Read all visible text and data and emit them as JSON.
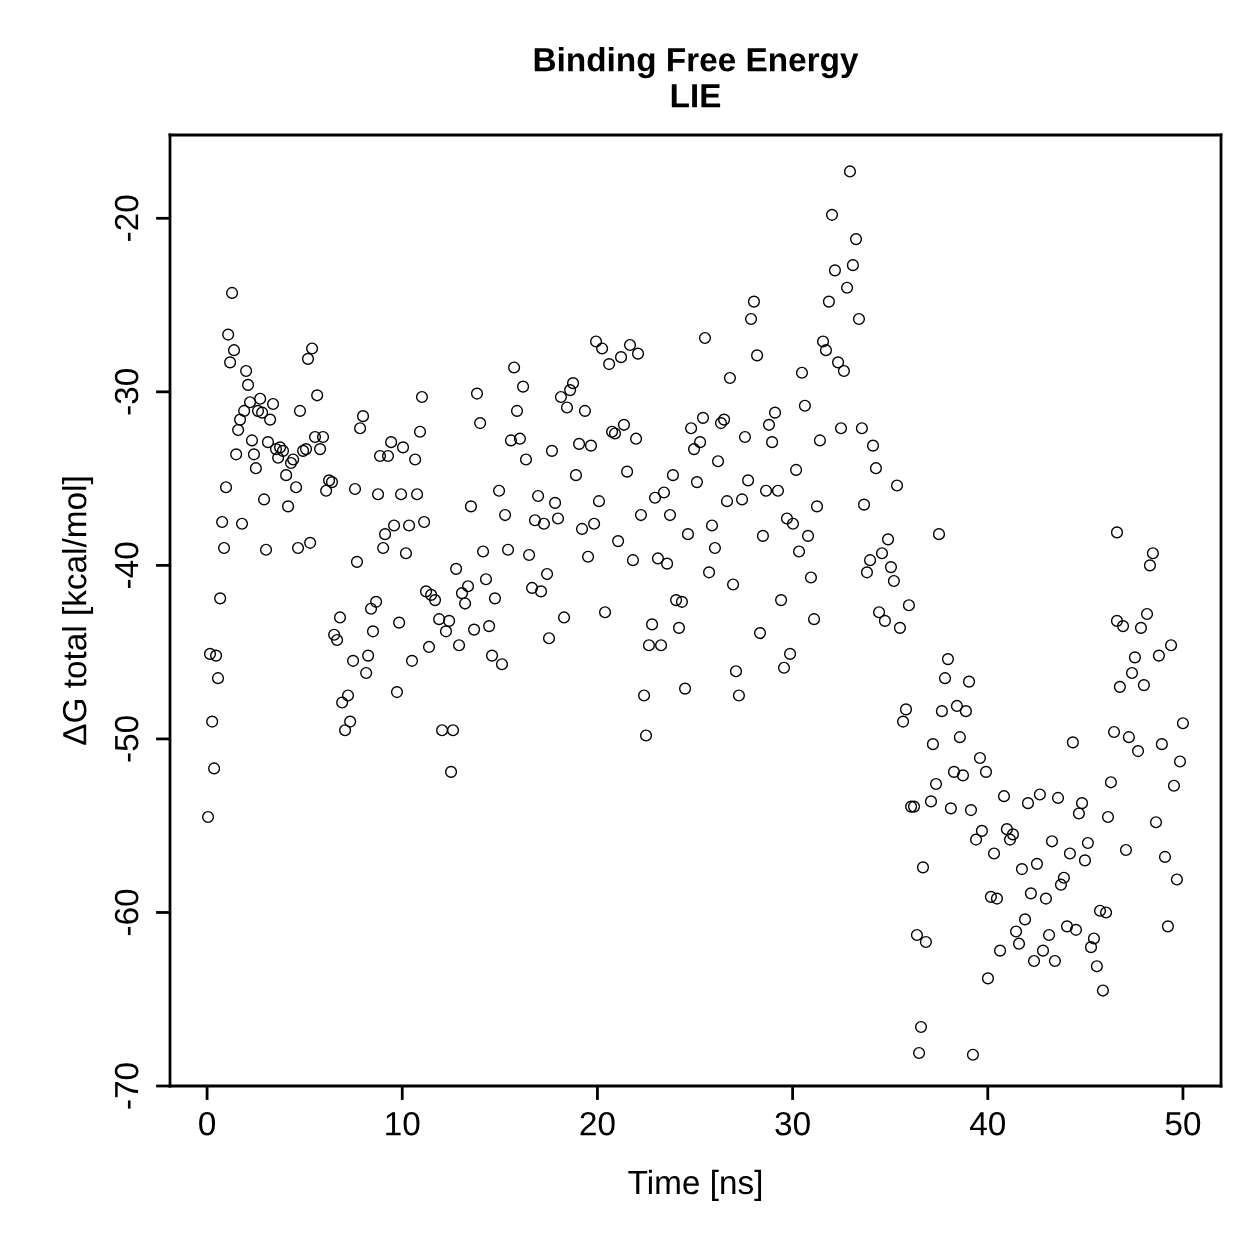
{
  "chart_data": {
    "type": "scatter",
    "title": "Binding Free Energy\nLIE",
    "xlabel": "Time [ns]",
    "ylabel": "ΔG total [kcal/mol]",
    "xlim": [
      -1.9,
      51.95
    ],
    "ylim": [
      -70,
      -15.2
    ],
    "xticks": [
      0,
      10,
      20,
      30,
      40,
      50
    ],
    "yticks": [
      -70,
      -60,
      -50,
      -40,
      -30,
      -20
    ],
    "grid": false,
    "legend": false,
    "marker": "circle",
    "series": [
      {
        "color": "#000000",
        "x": [
          0.05,
          0.15,
          0.26,
          0.36,
          0.46,
          0.56,
          0.67,
          0.77,
          0.87,
          0.97,
          1.08,
          1.18,
          1.28,
          1.38,
          1.49,
          1.59,
          1.69,
          1.79,
          1.9,
          2.0,
          2.1,
          2.2,
          2.3,
          2.4,
          2.5,
          2.61,
          2.72,
          2.82,
          2.92,
          3.02,
          3.12,
          3.23,
          3.38,
          3.53,
          3.64,
          3.74,
          3.89,
          4.05,
          4.15,
          4.3,
          4.41,
          4.56,
          4.66,
          4.76,
          4.92,
          5.07,
          5.17,
          5.28,
          5.38,
          5.53,
          5.64,
          5.79,
          5.94,
          6.1,
          6.25,
          6.4,
          6.51,
          6.66,
          6.81,
          6.92,
          7.07,
          7.22,
          7.33,
          7.48,
          7.58,
          7.68,
          7.84,
          7.99,
          8.15,
          8.25,
          8.4,
          8.5,
          8.66,
          8.76,
          8.86,
          9.02,
          9.12,
          9.27,
          9.43,
          9.58,
          9.73,
          9.84,
          9.94,
          10.04,
          10.19,
          10.35,
          10.5,
          10.66,
          10.76,
          10.91,
          11.01,
          11.12,
          11.22,
          11.37,
          11.48,
          11.68,
          11.89,
          12.04,
          12.24,
          12.4,
          12.5,
          12.6,
          12.76,
          12.91,
          13.06,
          13.22,
          13.37,
          13.52,
          13.68,
          13.83,
          13.99,
          14.14,
          14.29,
          14.45,
          14.6,
          14.75,
          14.96,
          15.11,
          15.27,
          15.42,
          15.57,
          15.73,
          15.88,
          16.03,
          16.19,
          16.34,
          16.5,
          16.65,
          16.8,
          16.96,
          17.11,
          17.26,
          17.42,
          17.52,
          17.67,
          17.83,
          17.98,
          18.13,
          18.29,
          18.44,
          18.6,
          18.75,
          18.9,
          19.06,
          19.21,
          19.36,
          19.52,
          19.67,
          19.83,
          19.93,
          20.08,
          20.24,
          20.39,
          20.6,
          20.75,
          20.9,
          21.06,
          21.21,
          21.36,
          21.52,
          21.67,
          21.82,
          21.98,
          22.08,
          22.23,
          22.39,
          22.49,
          22.64,
          22.8,
          22.95,
          23.1,
          23.26,
          23.41,
          23.57,
          23.72,
          23.87,
          24.03,
          24.18,
          24.33,
          24.49,
          24.64,
          24.8,
          24.95,
          25.1,
          25.26,
          25.41,
          25.51,
          25.72,
          25.87,
          26.02,
          26.18,
          26.33,
          26.49,
          26.64,
          26.79,
          26.95,
          27.1,
          27.25,
          27.41,
          27.56,
          27.72,
          27.87,
          28.02,
          28.18,
          28.33,
          28.48,
          28.64,
          28.79,
          28.95,
          29.1,
          29.25,
          29.41,
          29.56,
          29.71,
          29.87,
          30.02,
          30.18,
          30.33,
          30.48,
          30.63,
          30.79,
          30.94,
          31.1,
          31.25,
          31.4,
          31.56,
          31.71,
          31.86,
          32.02,
          32.17,
          32.33,
          32.48,
          32.63,
          32.79,
          32.94,
          33.09,
          33.25,
          33.4,
          33.55,
          33.66,
          33.81,
          33.97,
          34.12,
          34.27,
          34.43,
          34.58,
          34.73,
          34.89,
          35.04,
          35.19,
          35.35,
          35.5,
          35.66,
          35.81,
          35.96,
          36.07,
          36.22,
          36.37,
          36.48,
          36.58,
          36.68,
          36.83,
          37.09,
          37.19,
          37.35,
          37.5,
          37.65,
          37.81,
          37.96,
          38.11,
          38.27,
          38.42,
          38.57,
          38.73,
          38.88,
          39.04,
          39.14,
          39.24,
          39.4,
          39.6,
          39.7,
          39.91,
          40.01,
          40.16,
          40.32,
          40.47,
          40.63,
          40.83,
          40.98,
          41.14,
          41.29,
          41.45,
          41.6,
          41.75,
          41.91,
          42.06,
          42.21,
          42.37,
          42.52,
          42.67,
          42.83,
          42.98,
          43.14,
          43.29,
          43.44,
          43.6,
          43.75,
          43.9,
          44.06,
          44.21,
          44.36,
          44.52,
          44.67,
          44.83,
          44.98,
          45.13,
          45.29,
          45.44,
          45.59,
          45.75,
          45.9,
          46.06,
          46.16,
          46.31,
          46.47,
          46.62,
          46.62,
          46.77,
          46.93,
          47.08,
          47.23,
          47.39,
          47.54,
          47.7,
          47.85,
          48.0,
          48.16,
          48.31,
          48.46,
          48.62,
          48.77,
          48.92,
          49.08,
          49.23,
          49.39,
          49.54,
          49.69,
          49.85,
          50.0
        ],
        "values": [
          -54.5,
          -45.1,
          -49.0,
          -51.7,
          -45.2,
          -46.5,
          -41.9,
          -37.5,
          -39.0,
          -35.5,
          -26.7,
          -28.3,
          -24.3,
          -27.6,
          -33.6,
          -32.2,
          -31.6,
          -37.6,
          -31.1,
          -28.8,
          -29.6,
          -30.6,
          -32.8,
          -33.6,
          -34.4,
          -31.1,
          -30.4,
          -31.2,
          -36.2,
          -39.1,
          -32.9,
          -31.6,
          -30.7,
          -33.3,
          -33.8,
          -33.2,
          -33.4,
          -34.8,
          -36.6,
          -34.1,
          -33.9,
          -35.5,
          -39.0,
          -31.1,
          -33.4,
          -33.3,
          -28.1,
          -38.7,
          -27.5,
          -32.6,
          -30.2,
          -33.3,
          -32.6,
          -35.7,
          -35.1,
          -35.2,
          -44.0,
          -44.3,
          -43.0,
          -47.9,
          -49.5,
          -47.5,
          -49.0,
          -45.5,
          -35.6,
          -39.8,
          -32.1,
          -31.4,
          -46.2,
          -45.2,
          -42.5,
          -43.8,
          -42.1,
          -35.9,
          -33.7,
          -39.0,
          -38.2,
          -33.7,
          -32.9,
          -37.7,
          -47.3,
          -43.3,
          -35.9,
          -33.2,
          -39.3,
          -37.7,
          -45.5,
          -33.9,
          -35.9,
          -32.3,
          -30.3,
          -37.5,
          -41.5,
          -44.7,
          -41.7,
          -42.0,
          -43.1,
          -49.5,
          -43.8,
          -43.2,
          -51.9,
          -49.5,
          -40.2,
          -44.6,
          -41.6,
          -42.2,
          -41.2,
          -36.6,
          -43.7,
          -30.1,
          -31.8,
          -39.2,
          -40.8,
          -43.5,
          -45.2,
          -41.9,
          -35.7,
          -45.7,
          -37.1,
          -39.1,
          -32.8,
          -28.6,
          -31.1,
          -32.7,
          -29.7,
          -33.9,
          -39.4,
          -41.3,
          -37.4,
          -36.0,
          -41.5,
          -37.6,
          -40.5,
          -44.2,
          -33.4,
          -36.4,
          -37.3,
          -30.3,
          -43.0,
          -30.9,
          -29.9,
          -29.5,
          -34.8,
          -33.0,
          -37.9,
          -31.1,
          -39.5,
          -33.1,
          -37.6,
          -27.1,
          -36.3,
          -27.5,
          -42.7,
          -28.4,
          -32.3,
          -32.4,
          -38.6,
          -28.0,
          -31.9,
          -34.6,
          -27.3,
          -39.7,
          -32.7,
          -27.8,
          -37.1,
          -47.5,
          -49.8,
          -44.6,
          -43.4,
          -36.1,
          -39.6,
          -44.6,
          -35.8,
          -39.9,
          -37.1,
          -34.8,
          -42.0,
          -43.6,
          -42.1,
          -47.1,
          -38.2,
          -32.1,
          -33.3,
          -35.2,
          -32.9,
          -31.5,
          -26.9,
          -40.4,
          -37.7,
          -39.0,
          -34.0,
          -31.8,
          -31.6,
          -36.3,
          -29.2,
          -41.1,
          -46.1,
          -47.5,
          -36.2,
          -32.6,
          -35.1,
          -25.8,
          -24.8,
          -27.9,
          -43.9,
          -38.3,
          -35.7,
          -31.9,
          -32.9,
          -31.2,
          -35.7,
          -42.0,
          -45.9,
          -37.3,
          -45.1,
          -37.6,
          -34.5,
          -39.2,
          -28.9,
          -30.8,
          -38.3,
          -40.7,
          -43.1,
          -36.6,
          -32.8,
          -27.1,
          -27.6,
          -24.8,
          -19.8,
          -23.0,
          -28.3,
          -32.1,
          -28.8,
          -24.0,
          -17.3,
          -22.7,
          -21.2,
          -25.8,
          -32.1,
          -36.5,
          -40.4,
          -39.7,
          -33.1,
          -34.4,
          -42.7,
          -39.3,
          -43.2,
          -38.5,
          -40.1,
          -40.9,
          -35.4,
          -43.6,
          -49.0,
          -48.3,
          -42.3,
          -53.9,
          -53.9,
          -61.3,
          -68.1,
          -66.6,
          -57.4,
          -61.7,
          -53.6,
          -50.3,
          -52.6,
          -38.2,
          -48.4,
          -46.5,
          -45.4,
          -54.0,
          -51.9,
          -48.1,
          -49.9,
          -52.1,
          -48.4,
          -46.7,
          -54.1,
          -68.2,
          -55.8,
          -51.1,
          -55.3,
          -51.9,
          -63.8,
          -59.1,
          -56.6,
          -59.2,
          -62.2,
          -53.3,
          -55.2,
          -55.8,
          -55.5,
          -61.1,
          -61.8,
          -57.5,
          -60.4,
          -53.7,
          -58.9,
          -62.8,
          -57.2,
          -53.2,
          -62.2,
          -59.2,
          -61.3,
          -55.9,
          -62.8,
          -53.4,
          -58.4,
          -58.0,
          -60.8,
          -56.6,
          -50.2,
          -61.0,
          -54.3,
          -53.7,
          -57.0,
          -56.0,
          -62.0,
          -61.5,
          -63.1,
          -59.9,
          -64.5,
          -60.0,
          -54.5,
          -52.5,
          -49.6,
          -38.1,
          -43.2,
          -47.0,
          -43.5,
          -56.4,
          -49.9,
          -46.2,
          -45.3,
          -50.7,
          -43.6,
          -46.9,
          -42.8,
          -40.0,
          -39.3,
          -54.8,
          -45.2,
          -50.3,
          -56.8,
          -60.8,
          -44.6,
          -52.7,
          -58.1,
          -51.3,
          -49.1
        ]
      }
    ]
  }
}
